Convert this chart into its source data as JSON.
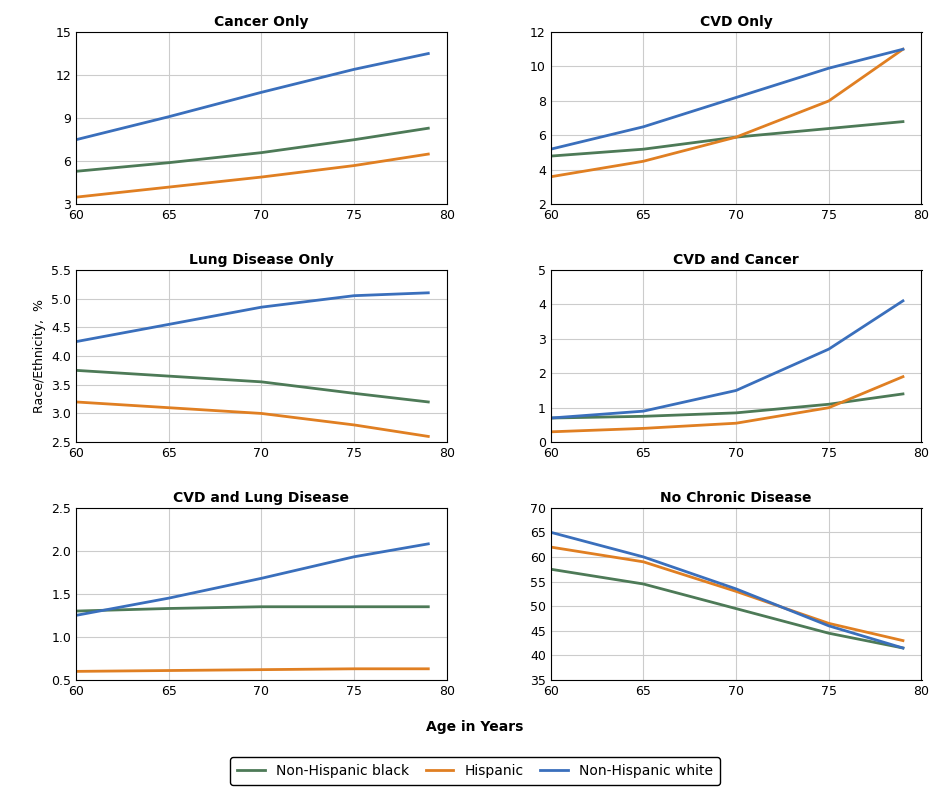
{
  "age": [
    60,
    65,
    70,
    75,
    79
  ],
  "panels": [
    {
      "title": "Cancer Only",
      "ylim": [
        3,
        15
      ],
      "yticks": [
        3,
        6,
        9,
        12,
        15
      ],
      "nhb": [
        5.3,
        5.9,
        6.6,
        7.5,
        8.3
      ],
      "hisp": [
        3.5,
        4.2,
        4.9,
        5.7,
        6.5
      ],
      "nhw": [
        7.5,
        9.1,
        10.8,
        12.4,
        13.5
      ]
    },
    {
      "title": "CVD Only",
      "ylim": [
        2,
        12
      ],
      "yticks": [
        2,
        4,
        6,
        8,
        10,
        12
      ],
      "nhb": [
        4.8,
        5.2,
        5.9,
        6.4,
        6.8
      ],
      "hisp": [
        3.6,
        4.5,
        5.9,
        8.0,
        11.0
      ],
      "nhw": [
        5.2,
        6.5,
        8.2,
        9.9,
        11.0
      ]
    },
    {
      "title": "Lung Disease Only",
      "ylim": [
        2.5,
        5.5
      ],
      "yticks": [
        2.5,
        3.0,
        3.5,
        4.0,
        4.5,
        5.0,
        5.5
      ],
      "nhb": [
        3.75,
        3.65,
        3.55,
        3.35,
        3.2
      ],
      "hisp": [
        3.2,
        3.1,
        3.0,
        2.8,
        2.6
      ],
      "nhw": [
        4.25,
        4.55,
        4.85,
        5.05,
        5.1
      ]
    },
    {
      "title": "CVD and Cancer",
      "ylim": [
        0,
        5
      ],
      "yticks": [
        0,
        1,
        2,
        3,
        4,
        5
      ],
      "nhb": [
        0.7,
        0.75,
        0.85,
        1.1,
        1.4
      ],
      "hisp": [
        0.3,
        0.4,
        0.55,
        1.0,
        1.9
      ],
      "nhw": [
        0.7,
        0.9,
        1.5,
        2.7,
        4.1
      ]
    },
    {
      "title": "CVD and Lung Disease",
      "ylim": [
        0.5,
        2.5
      ],
      "yticks": [
        0.5,
        1.0,
        1.5,
        2.0,
        2.5
      ],
      "nhb": [
        1.3,
        1.33,
        1.35,
        1.35,
        1.35
      ],
      "hisp": [
        0.6,
        0.61,
        0.62,
        0.63,
        0.63
      ],
      "nhw": [
        1.25,
        1.45,
        1.68,
        1.93,
        2.08
      ]
    },
    {
      "title": "No Chronic Disease",
      "ylim": [
        35,
        70
      ],
      "yticks": [
        35,
        40,
        45,
        50,
        55,
        60,
        65,
        70
      ],
      "nhb": [
        57.5,
        54.5,
        49.5,
        44.5,
        41.5
      ],
      "hisp": [
        62.0,
        59.0,
        53.0,
        46.5,
        43.0
      ],
      "nhw": [
        65.0,
        60.0,
        53.5,
        46.0,
        41.5
      ]
    }
  ],
  "colors": {
    "nhb": "#4d7a57",
    "hisp": "#e07f22",
    "nhw": "#3a6fbc"
  },
  "legend_labels": {
    "nhb": "Non-Hispanic black",
    "hisp": "Hispanic",
    "nhw": "Non-Hispanic white"
  },
  "ylabel": "Race/Ethnicity,  %",
  "xlabel": "Age in Years",
  "linewidth": 2.0,
  "background_color": "#ffffff",
  "grid_color": "#cccccc"
}
